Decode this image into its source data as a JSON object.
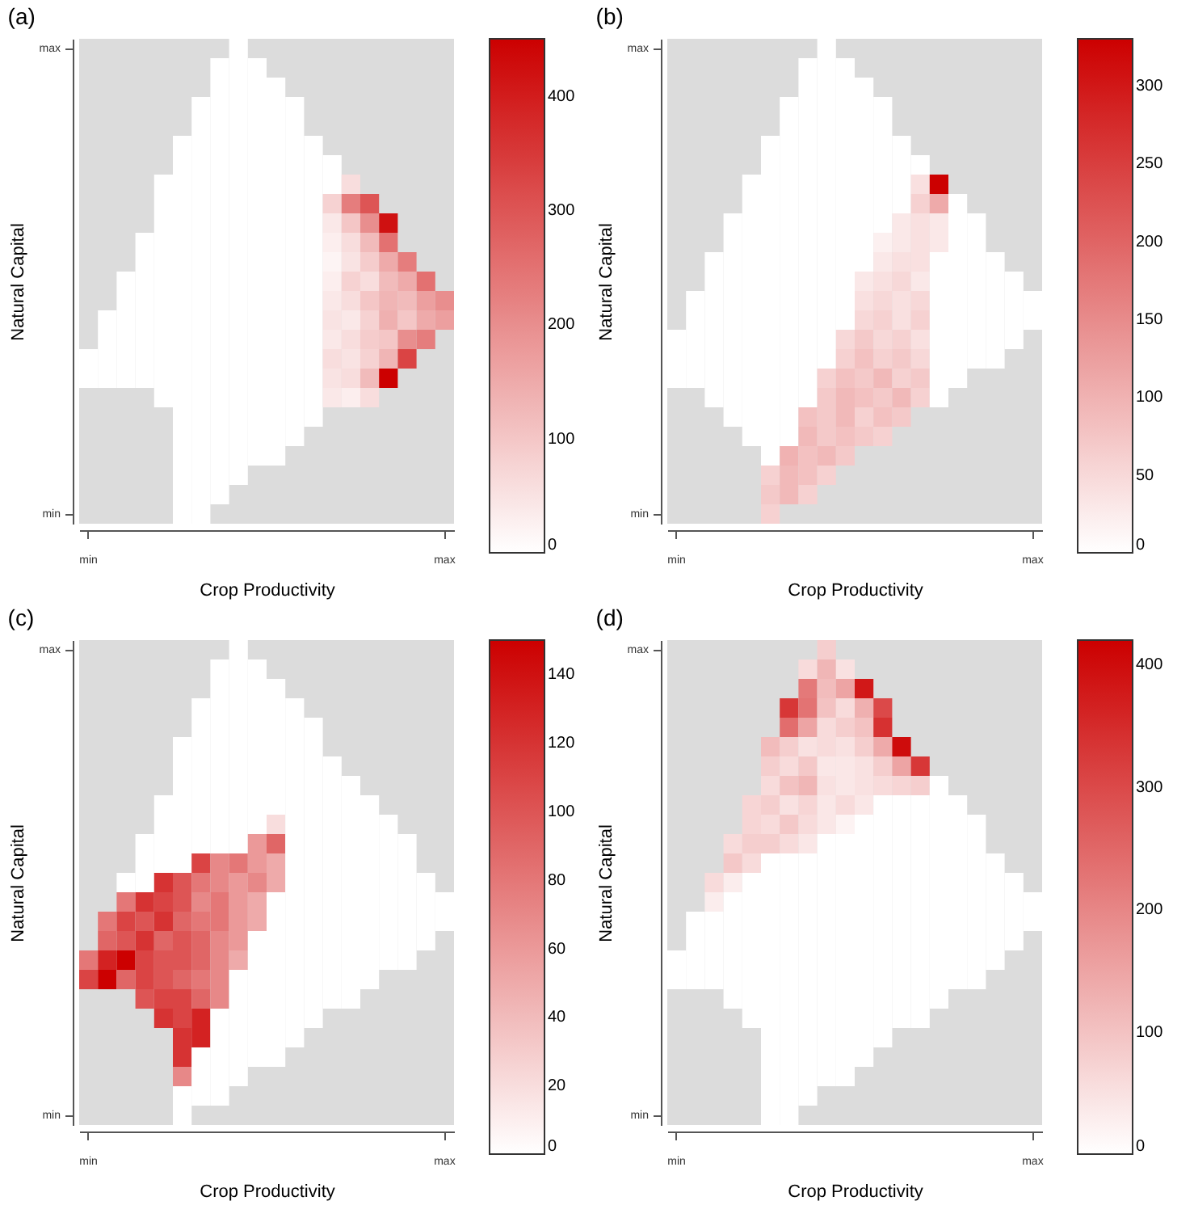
{
  "chart_data": [
    {
      "type": "heatmap",
      "title": "(a)",
      "xlabel": "Crop Productivity",
      "ylabel": "Natural Capital",
      "color": "#cc0000",
      "clim": [
        0,
        450
      ],
      "cticks": [
        0,
        100,
        200,
        300,
        400
      ],
      "categories": [
        "min",
        null,
        null,
        null,
        null,
        null,
        null,
        null,
        null,
        null,
        null,
        null,
        null,
        null,
        null,
        null,
        null,
        null,
        null,
        "max"
      ],
      "y_categories": [
        "max",
        null,
        null,
        null,
        null,
        null,
        null,
        null,
        null,
        null,
        null,
        null,
        null,
        null,
        null,
        null,
        null,
        null,
        null,
        null,
        null,
        null,
        null,
        null,
        "min"
      ],
      "cells": [
        [
          null,
          null,
          null,
          null,
          null,
          null,
          null,
          null,
          0,
          null,
          null,
          null,
          null,
          null,
          null,
          null,
          null,
          null,
          null,
          null
        ],
        [
          null,
          null,
          null,
          null,
          null,
          null,
          null,
          0,
          0,
          0,
          null,
          null,
          null,
          null,
          null,
          null,
          null,
          null,
          null,
          null
        ],
        [
          null,
          null,
          null,
          null,
          null,
          null,
          null,
          0,
          0,
          0,
          0,
          null,
          null,
          null,
          null,
          null,
          null,
          null,
          null,
          null
        ],
        [
          null,
          null,
          null,
          null,
          null,
          null,
          0,
          0,
          0,
          0,
          0,
          0,
          null,
          null,
          null,
          null,
          null,
          null,
          null,
          null
        ],
        [
          null,
          null,
          null,
          null,
          null,
          null,
          0,
          0,
          0,
          0,
          0,
          0,
          null,
          null,
          null,
          null,
          null,
          null,
          null,
          null
        ],
        [
          null,
          null,
          null,
          null,
          null,
          0,
          0,
          0,
          0,
          0,
          0,
          0,
          0,
          null,
          null,
          null,
          null,
          null,
          null,
          null
        ],
        [
          null,
          null,
          null,
          null,
          null,
          0,
          0,
          0,
          0,
          0,
          0,
          0,
          0,
          0,
          null,
          null,
          null,
          null,
          null,
          null
        ],
        [
          null,
          null,
          null,
          null,
          0,
          0,
          0,
          0,
          0,
          0,
          0,
          0,
          0,
          0,
          60,
          null,
          null,
          null,
          null,
          null
        ],
        [
          null,
          null,
          null,
          null,
          0,
          0,
          0,
          0,
          0,
          0,
          0,
          0,
          0,
          80,
          230,
          300,
          null,
          null,
          null,
          null
        ],
        [
          null,
          null,
          null,
          null,
          0,
          0,
          0,
          0,
          0,
          0,
          0,
          0,
          0,
          40,
          100,
          200,
          420,
          null,
          null,
          null
        ],
        [
          null,
          null,
          null,
          0,
          0,
          0,
          0,
          0,
          0,
          0,
          0,
          0,
          0,
          30,
          60,
          120,
          250,
          null,
          null,
          null
        ],
        [
          null,
          null,
          null,
          0,
          0,
          0,
          0,
          0,
          0,
          0,
          0,
          0,
          0,
          20,
          50,
          90,
          150,
          230,
          null,
          null
        ],
        [
          null,
          null,
          0,
          0,
          0,
          0,
          0,
          0,
          0,
          0,
          0,
          0,
          0,
          30,
          80,
          60,
          120,
          150,
          250,
          null
        ],
        [
          null,
          null,
          0,
          0,
          0,
          0,
          0,
          0,
          0,
          0,
          0,
          0,
          0,
          40,
          60,
          100,
          130,
          120,
          170,
          200
        ],
        [
          null,
          0,
          0,
          0,
          0,
          0,
          0,
          0,
          0,
          0,
          0,
          0,
          0,
          50,
          40,
          80,
          140,
          100,
          150,
          170
        ],
        [
          null,
          0,
          0,
          0,
          0,
          0,
          0,
          0,
          0,
          0,
          0,
          0,
          0,
          40,
          60,
          90,
          100,
          200,
          230,
          null
        ],
        [
          0,
          0,
          0,
          0,
          0,
          0,
          0,
          0,
          0,
          0,
          0,
          0,
          0,
          60,
          50,
          80,
          130,
          330,
          null,
          null
        ],
        [
          0,
          0,
          0,
          0,
          0,
          0,
          0,
          0,
          0,
          0,
          0,
          0,
          0,
          50,
          60,
          120,
          450,
          null,
          null,
          null
        ],
        [
          null,
          null,
          null,
          null,
          0,
          0,
          0,
          0,
          0,
          0,
          0,
          0,
          0,
          40,
          30,
          60,
          null,
          null,
          null,
          null
        ],
        [
          null,
          null,
          null,
          null,
          null,
          0,
          0,
          0,
          0,
          0,
          0,
          0,
          0,
          null,
          null,
          null,
          null,
          null,
          null,
          null
        ],
        [
          null,
          null,
          null,
          null,
          null,
          0,
          0,
          0,
          0,
          0,
          0,
          0,
          null,
          null,
          null,
          null,
          null,
          null,
          null,
          null
        ],
        [
          null,
          null,
          null,
          null,
          null,
          0,
          0,
          0,
          0,
          0,
          0,
          null,
          null,
          null,
          null,
          null,
          null,
          null,
          null,
          null
        ],
        [
          null,
          null,
          null,
          null,
          null,
          0,
          0,
          0,
          0,
          null,
          null,
          null,
          null,
          null,
          null,
          null,
          null,
          null,
          null,
          null
        ],
        [
          null,
          null,
          null,
          null,
          null,
          0,
          0,
          0,
          null,
          null,
          null,
          null,
          null,
          null,
          null,
          null,
          null,
          null,
          null,
          null
        ],
        [
          null,
          null,
          null,
          null,
          null,
          0,
          0,
          null,
          null,
          null,
          null,
          null,
          null,
          null,
          null,
          null,
          null,
          null,
          null,
          null
        ]
      ]
    },
    {
      "type": "heatmap",
      "title": "(b)",
      "xlabel": "Crop Productivity",
      "ylabel": "Natural Capital",
      "color": "#cc0000",
      "clim": [
        0,
        330
      ],
      "cticks": [
        0,
        50,
        100,
        150,
        200,
        250,
        300
      ],
      "categories": [
        "min",
        null,
        null,
        null,
        null,
        null,
        null,
        null,
        null,
        null,
        null,
        null,
        null,
        null,
        null,
        null,
        null,
        null,
        null,
        "max"
      ],
      "y_categories": [
        "max",
        null,
        null,
        null,
        null,
        null,
        null,
        null,
        null,
        null,
        null,
        null,
        null,
        null,
        null,
        null,
        null,
        null,
        null,
        null,
        null,
        null,
        null,
        null,
        "min"
      ],
      "cells": [
        [
          null,
          null,
          null,
          null,
          null,
          null,
          null,
          null,
          0,
          null,
          null,
          null,
          null,
          null,
          null,
          null,
          null,
          null,
          null,
          null
        ],
        [
          null,
          null,
          null,
          null,
          null,
          null,
          null,
          0,
          0,
          0,
          null,
          null,
          null,
          null,
          null,
          null,
          null,
          null,
          null,
          null
        ],
        [
          null,
          null,
          null,
          null,
          null,
          null,
          null,
          0,
          0,
          0,
          0,
          null,
          null,
          null,
          null,
          null,
          null,
          null,
          null,
          null
        ],
        [
          null,
          null,
          null,
          null,
          null,
          null,
          0,
          0,
          0,
          0,
          0,
          0,
          null,
          null,
          null,
          null,
          null,
          null,
          null,
          null
        ],
        [
          null,
          null,
          null,
          null,
          null,
          null,
          0,
          0,
          0,
          0,
          0,
          0,
          null,
          null,
          null,
          null,
          null,
          null,
          null,
          null
        ],
        [
          null,
          null,
          null,
          null,
          null,
          0,
          0,
          0,
          0,
          0,
          0,
          0,
          0,
          null,
          null,
          null,
          null,
          null,
          null,
          null
        ],
        [
          null,
          null,
          null,
          null,
          null,
          0,
          0,
          0,
          0,
          0,
          0,
          0,
          0,
          0,
          null,
          null,
          null,
          null,
          null,
          null
        ],
        [
          null,
          null,
          null,
          null,
          0,
          0,
          0,
          0,
          0,
          0,
          0,
          0,
          0,
          40,
          330,
          null,
          null,
          null,
          null,
          null
        ],
        [
          null,
          null,
          null,
          null,
          0,
          0,
          0,
          0,
          0,
          0,
          0,
          0,
          0,
          60,
          110,
          0,
          null,
          null,
          null,
          null
        ],
        [
          null,
          null,
          null,
          0,
          0,
          0,
          0,
          0,
          0,
          0,
          0,
          0,
          30,
          40,
          30,
          0,
          0,
          null,
          null,
          null
        ],
        [
          null,
          null,
          null,
          0,
          0,
          0,
          0,
          0,
          0,
          0,
          0,
          20,
          30,
          40,
          30,
          0,
          0,
          null,
          null,
          null
        ],
        [
          null,
          null,
          0,
          0,
          0,
          0,
          0,
          0,
          0,
          0,
          0,
          30,
          40,
          40,
          0,
          0,
          0,
          0,
          null,
          null
        ],
        [
          null,
          null,
          0,
          0,
          0,
          0,
          0,
          0,
          0,
          0,
          30,
          40,
          50,
          30,
          0,
          0,
          0,
          0,
          0,
          null
        ],
        [
          null,
          0,
          0,
          0,
          0,
          0,
          0,
          0,
          0,
          0,
          40,
          50,
          40,
          50,
          0,
          0,
          0,
          0,
          0,
          0
        ],
        [
          null,
          0,
          0,
          0,
          0,
          0,
          0,
          0,
          0,
          0,
          50,
          60,
          40,
          60,
          0,
          0,
          0,
          0,
          0,
          0
        ],
        [
          0,
          0,
          0,
          0,
          0,
          0,
          0,
          0,
          0,
          50,
          70,
          50,
          60,
          40,
          0,
          0,
          0,
          0,
          0,
          null
        ],
        [
          0,
          0,
          0,
          0,
          0,
          0,
          0,
          0,
          0,
          60,
          80,
          60,
          70,
          50,
          0,
          0,
          0,
          0,
          null,
          null
        ],
        [
          0,
          0,
          0,
          0,
          0,
          0,
          0,
          0,
          60,
          80,
          70,
          90,
          60,
          70,
          0,
          0,
          null,
          null,
          null,
          null
        ],
        [
          null,
          null,
          0,
          0,
          0,
          0,
          0,
          0,
          70,
          90,
          80,
          70,
          90,
          60,
          0,
          null,
          null,
          null,
          null,
          null
        ],
        [
          null,
          null,
          null,
          0,
          0,
          0,
          0,
          80,
          70,
          90,
          60,
          80,
          70,
          null,
          null,
          null,
          null,
          null,
          null,
          null
        ],
        [
          null,
          null,
          null,
          null,
          0,
          0,
          0,
          90,
          70,
          80,
          70,
          60,
          null,
          null,
          null,
          null,
          null,
          null,
          null,
          null
        ],
        [
          null,
          null,
          null,
          null,
          null,
          0,
          100,
          80,
          90,
          70,
          null,
          null,
          null,
          null,
          null,
          null,
          null,
          null,
          null,
          null
        ],
        [
          null,
          null,
          null,
          null,
          null,
          60,
          90,
          80,
          60,
          null,
          null,
          null,
          null,
          null,
          null,
          null,
          null,
          null,
          null,
          null
        ],
        [
          null,
          null,
          null,
          null,
          null,
          70,
          90,
          60,
          null,
          null,
          null,
          null,
          null,
          null,
          null,
          null,
          null,
          null,
          null,
          null
        ],
        [
          null,
          null,
          null,
          null,
          null,
          60,
          null,
          null,
          null,
          null,
          null,
          null,
          null,
          null,
          null,
          null,
          null,
          null,
          null,
          null
        ]
      ]
    },
    {
      "type": "heatmap",
      "title": "(c)",
      "xlabel": "Crop Productivity",
      "ylabel": "Natural Capital",
      "color": "#cc0000",
      "clim": [
        0,
        150
      ],
      "cticks": [
        0,
        20,
        40,
        60,
        80,
        100,
        120,
        140
      ],
      "categories": [
        "min",
        null,
        null,
        null,
        null,
        null,
        null,
        null,
        null,
        null,
        null,
        null,
        null,
        null,
        null,
        null,
        null,
        null,
        null,
        "max"
      ],
      "y_categories": [
        "max",
        null,
        null,
        null,
        null,
        null,
        null,
        null,
        null,
        null,
        null,
        null,
        null,
        null,
        null,
        null,
        null,
        null,
        null,
        null,
        null,
        null,
        null,
        null,
        "min"
      ],
      "cells": [
        [
          null,
          null,
          null,
          null,
          null,
          null,
          null,
          null,
          0,
          null,
          null,
          null,
          null,
          null,
          null,
          null,
          null,
          null,
          null,
          null
        ],
        [
          null,
          null,
          null,
          null,
          null,
          null,
          null,
          0,
          0,
          0,
          null,
          null,
          null,
          null,
          null,
          null,
          null,
          null,
          null,
          null
        ],
        [
          null,
          null,
          null,
          null,
          null,
          null,
          null,
          0,
          0,
          0,
          0,
          null,
          null,
          null,
          null,
          null,
          null,
          null,
          null,
          null
        ],
        [
          null,
          null,
          null,
          null,
          null,
          null,
          0,
          0,
          0,
          0,
          0,
          0,
          null,
          null,
          null,
          null,
          null,
          null,
          null,
          null
        ],
        [
          null,
          null,
          null,
          null,
          null,
          null,
          0,
          0,
          0,
          0,
          0,
          0,
          0,
          null,
          null,
          null,
          null,
          null,
          null,
          null
        ],
        [
          null,
          null,
          null,
          null,
          null,
          0,
          0,
          0,
          0,
          0,
          0,
          0,
          0,
          null,
          null,
          null,
          null,
          null,
          null,
          null
        ],
        [
          null,
          null,
          null,
          null,
          null,
          0,
          0,
          0,
          0,
          0,
          0,
          0,
          0,
          0,
          null,
          null,
          null,
          null,
          null,
          null
        ],
        [
          null,
          null,
          null,
          null,
          null,
          0,
          0,
          0,
          0,
          0,
          0,
          0,
          0,
          0,
          0,
          null,
          null,
          null,
          null,
          null
        ],
        [
          null,
          null,
          null,
          null,
          0,
          0,
          0,
          0,
          0,
          0,
          0,
          0,
          0,
          0,
          0,
          0,
          null,
          null,
          null,
          null
        ],
        [
          null,
          null,
          null,
          null,
          0,
          0,
          0,
          0,
          0,
          0,
          20,
          0,
          0,
          0,
          0,
          0,
          0,
          null,
          null,
          null
        ],
        [
          null,
          null,
          null,
          0,
          0,
          0,
          0,
          0,
          0,
          60,
          90,
          0,
          0,
          0,
          0,
          0,
          0,
          0,
          null,
          null
        ],
        [
          null,
          null,
          null,
          0,
          0,
          0,
          110,
          70,
          80,
          60,
          50,
          0,
          0,
          0,
          0,
          0,
          0,
          0,
          null,
          null
        ],
        [
          null,
          null,
          0,
          0,
          120,
          100,
          80,
          70,
          60,
          70,
          50,
          0,
          0,
          0,
          0,
          0,
          0,
          0,
          0,
          null
        ],
        [
          null,
          null,
          80,
          120,
          110,
          100,
          70,
          80,
          60,
          50,
          0,
          0,
          0,
          0,
          0,
          0,
          0,
          0,
          0,
          0
        ],
        [
          null,
          80,
          110,
          100,
          120,
          90,
          80,
          80,
          60,
          50,
          0,
          0,
          0,
          0,
          0,
          0,
          0,
          0,
          0,
          0
        ],
        [
          null,
          90,
          100,
          120,
          90,
          100,
          90,
          70,
          60,
          0,
          0,
          0,
          0,
          0,
          0,
          0,
          0,
          0,
          0,
          null
        ],
        [
          80,
          130,
          150,
          110,
          100,
          100,
          90,
          70,
          50,
          0,
          0,
          0,
          0,
          0,
          0,
          0,
          0,
          0,
          null,
          null
        ],
        [
          110,
          150,
          90,
          110,
          100,
          90,
          80,
          70,
          0,
          0,
          0,
          0,
          0,
          0,
          0,
          0,
          null,
          null,
          null,
          null
        ],
        [
          null,
          null,
          null,
          100,
          110,
          110,
          90,
          70,
          0,
          0,
          0,
          0,
          0,
          0,
          0,
          null,
          null,
          null,
          null,
          null
        ],
        [
          null,
          null,
          null,
          null,
          120,
          110,
          130,
          0,
          0,
          0,
          0,
          0,
          0,
          null,
          null,
          null,
          null,
          null,
          null,
          null
        ],
        [
          null,
          null,
          null,
          null,
          null,
          120,
          130,
          0,
          0,
          0,
          0,
          0,
          null,
          null,
          null,
          null,
          null,
          null,
          null,
          null
        ],
        [
          null,
          null,
          null,
          null,
          null,
          120,
          0,
          0,
          0,
          0,
          0,
          null,
          null,
          null,
          null,
          null,
          null,
          null,
          null,
          null
        ],
        [
          null,
          null,
          null,
          null,
          null,
          70,
          0,
          0,
          0,
          null,
          null,
          null,
          null,
          null,
          null,
          null,
          null,
          null,
          null,
          null
        ],
        [
          null,
          null,
          null,
          null,
          null,
          0,
          0,
          0,
          null,
          null,
          null,
          null,
          null,
          null,
          null,
          null,
          null,
          null,
          null,
          null
        ],
        [
          null,
          null,
          null,
          null,
          null,
          0,
          null,
          null,
          null,
          null,
          null,
          null,
          null,
          null,
          null,
          null,
          null,
          null,
          null,
          null
        ]
      ]
    },
    {
      "type": "heatmap",
      "title": "(d)",
      "xlabel": "Crop Productivity",
      "ylabel": "Natural Capital",
      "color": "#cc0000",
      "clim": [
        0,
        420
      ],
      "cticks": [
        0,
        100,
        200,
        300,
        400
      ],
      "categories": [
        "min",
        null,
        null,
        null,
        null,
        null,
        null,
        null,
        null,
        null,
        null,
        null,
        null,
        null,
        null,
        null,
        null,
        null,
        null,
        "max"
      ],
      "y_categories": [
        "max",
        null,
        null,
        null,
        null,
        null,
        null,
        null,
        null,
        null,
        null,
        null,
        null,
        null,
        null,
        null,
        null,
        null,
        null,
        null,
        null,
        null,
        null,
        null,
        "min"
      ],
      "cells": [
        [
          null,
          null,
          null,
          null,
          null,
          null,
          null,
          null,
          80,
          null,
          null,
          null,
          null,
          null,
          null,
          null,
          null,
          null,
          null,
          null
        ],
        [
          null,
          null,
          null,
          null,
          null,
          null,
          null,
          60,
          120,
          50,
          null,
          null,
          null,
          null,
          null,
          null,
          null,
          null,
          null,
          null
        ],
        [
          null,
          null,
          null,
          null,
          null,
          null,
          null,
          220,
          110,
          150,
          380,
          null,
          null,
          null,
          null,
          null,
          null,
          null,
          null,
          null
        ],
        [
          null,
          null,
          null,
          null,
          null,
          null,
          330,
          230,
          100,
          60,
          130,
          300,
          null,
          null,
          null,
          null,
          null,
          null,
          null,
          null
        ],
        [
          null,
          null,
          null,
          null,
          null,
          null,
          240,
          150,
          60,
          80,
          100,
          340,
          null,
          null,
          null,
          null,
          null,
          null,
          null,
          null
        ],
        [
          null,
          null,
          null,
          null,
          null,
          110,
          80,
          50,
          60,
          50,
          80,
          140,
          400,
          null,
          null,
          null,
          null,
          null,
          null,
          null
        ],
        [
          null,
          null,
          null,
          null,
          null,
          80,
          60,
          90,
          40,
          40,
          50,
          80,
          150,
          330,
          null,
          null,
          null,
          null,
          null,
          null
        ],
        [
          null,
          null,
          null,
          null,
          null,
          60,
          100,
          120,
          50,
          40,
          50,
          60,
          70,
          80,
          0,
          null,
          null,
          null,
          null,
          null
        ],
        [
          null,
          null,
          null,
          null,
          70,
          80,
          50,
          70,
          40,
          60,
          40,
          0,
          0,
          0,
          0,
          0,
          null,
          null,
          null,
          null
        ],
        [
          null,
          null,
          null,
          null,
          70,
          60,
          90,
          60,
          40,
          20,
          0,
          0,
          0,
          0,
          0,
          0,
          0,
          null,
          null,
          null
        ],
        [
          null,
          null,
          null,
          60,
          80,
          80,
          60,
          40,
          0,
          0,
          0,
          0,
          0,
          0,
          0,
          0,
          0,
          null,
          null,
          null
        ],
        [
          null,
          null,
          null,
          90,
          60,
          0,
          0,
          0,
          0,
          0,
          0,
          0,
          0,
          0,
          0,
          0,
          0,
          0,
          null,
          null
        ],
        [
          null,
          null,
          60,
          30,
          0,
          0,
          0,
          0,
          0,
          0,
          0,
          0,
          0,
          0,
          0,
          0,
          0,
          0,
          0,
          null
        ],
        [
          null,
          null,
          30,
          0,
          0,
          0,
          0,
          0,
          0,
          0,
          0,
          0,
          0,
          0,
          0,
          0,
          0,
          0,
          0,
          0
        ],
        [
          null,
          0,
          0,
          0,
          0,
          0,
          0,
          0,
          0,
          0,
          0,
          0,
          0,
          0,
          0,
          0,
          0,
          0,
          0,
          0
        ],
        [
          null,
          0,
          0,
          0,
          0,
          0,
          0,
          0,
          0,
          0,
          0,
          0,
          0,
          0,
          0,
          0,
          0,
          0,
          0,
          null
        ],
        [
          0,
          0,
          0,
          0,
          0,
          0,
          0,
          0,
          0,
          0,
          0,
          0,
          0,
          0,
          0,
          0,
          0,
          0,
          null,
          null
        ],
        [
          0,
          0,
          0,
          0,
          0,
          0,
          0,
          0,
          0,
          0,
          0,
          0,
          0,
          0,
          0,
          0,
          0,
          null,
          null,
          null
        ],
        [
          null,
          null,
          null,
          0,
          0,
          0,
          0,
          0,
          0,
          0,
          0,
          0,
          0,
          0,
          0,
          null,
          null,
          null,
          null,
          null
        ],
        [
          null,
          null,
          null,
          null,
          0,
          0,
          0,
          0,
          0,
          0,
          0,
          0,
          0,
          0,
          null,
          null,
          null,
          null,
          null,
          null
        ],
        [
          null,
          null,
          null,
          null,
          null,
          0,
          0,
          0,
          0,
          0,
          0,
          0,
          null,
          null,
          null,
          null,
          null,
          null,
          null,
          null
        ],
        [
          null,
          null,
          null,
          null,
          null,
          0,
          0,
          0,
          0,
          0,
          0,
          null,
          null,
          null,
          null,
          null,
          null,
          null,
          null,
          null
        ],
        [
          null,
          null,
          null,
          null,
          null,
          0,
          0,
          0,
          0,
          0,
          null,
          null,
          null,
          null,
          null,
          null,
          null,
          null,
          null,
          null
        ],
        [
          null,
          null,
          null,
          null,
          null,
          0,
          0,
          0,
          null,
          null,
          null,
          null,
          null,
          null,
          null,
          null,
          null,
          null,
          null,
          null
        ],
        [
          null,
          null,
          null,
          null,
          null,
          0,
          0,
          null,
          null,
          null,
          null,
          null,
          null,
          null,
          null,
          null,
          null,
          null,
          null,
          null
        ]
      ]
    }
  ]
}
